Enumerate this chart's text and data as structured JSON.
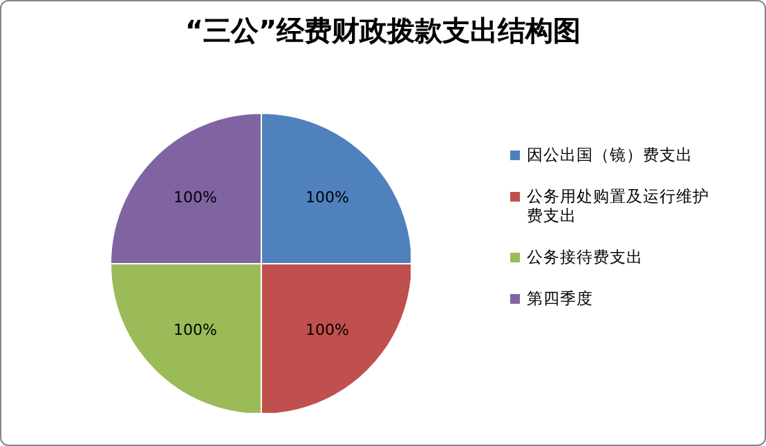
{
  "chart_data": {
    "type": "pie",
    "title": "“三公”经费财政拨款支出结构图",
    "categories": [
      "因公出国（镜）费支出",
      "公务用处购置及运行维护费支出",
      "公务接待费支出",
      "第四季度"
    ],
    "values": [
      100,
      100,
      100,
      100
    ],
    "value_labels": [
      "100%",
      "100%",
      "100%",
      "100%"
    ],
    "colors": [
      "#4f81bd",
      "#c0504d",
      "#9bbb59",
      "#8064a2"
    ],
    "legend": "right"
  }
}
